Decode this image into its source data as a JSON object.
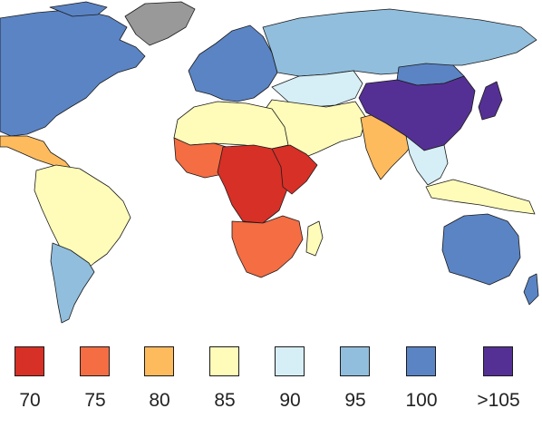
{
  "legend": [
    {
      "label": "70",
      "color": "#d73027"
    },
    {
      "label": "75",
      "color": "#f46d43"
    },
    {
      "label": "80",
      "color": "#fdbb5e"
    },
    {
      "label": "85",
      "color": "#fffcba"
    },
    {
      "label": "90",
      "color": "#d6eef5"
    },
    {
      "label": "95",
      "color": "#91bedd"
    },
    {
      "label": "100",
      "color": "#5b84c4"
    },
    {
      "label": ">105",
      "color": "#553094"
    }
  ],
  "no_data_color": "#999999",
  "regions": [
    {
      "name": "north-america",
      "color": "#5b84c4"
    },
    {
      "name": "greenland",
      "color": "#999999"
    },
    {
      "name": "mexico",
      "color": "#fdbb5e"
    },
    {
      "name": "south-america",
      "color": "#fffcba"
    },
    {
      "name": "southern-cone",
      "color": "#91bedd"
    },
    {
      "name": "europe",
      "color": "#5b84c4"
    },
    {
      "name": "russia",
      "color": "#91bedd"
    },
    {
      "name": "central-asia",
      "color": "#d6eef5"
    },
    {
      "name": "middle-east",
      "color": "#fffcba"
    },
    {
      "name": "south-asia",
      "color": "#fdbb5e"
    },
    {
      "name": "north-africa",
      "color": "#fffcba"
    },
    {
      "name": "west-africa",
      "color": "#f46d43"
    },
    {
      "name": "central-africa",
      "color": "#d73027"
    },
    {
      "name": "east-africa",
      "color": "#d73027"
    },
    {
      "name": "southern-africa",
      "color": "#f46d43"
    },
    {
      "name": "madagascar",
      "color": "#fffcba"
    },
    {
      "name": "china",
      "color": "#553094"
    },
    {
      "name": "japan",
      "color": "#553094"
    },
    {
      "name": "mongolia",
      "color": "#5b84c4"
    },
    {
      "name": "southeast-asia",
      "color": "#d6eef5"
    },
    {
      "name": "indonesia",
      "color": "#fffcba"
    },
    {
      "name": "australia",
      "color": "#5b84c4"
    },
    {
      "name": "new-zealand",
      "color": "#5b84c4"
    }
  ]
}
